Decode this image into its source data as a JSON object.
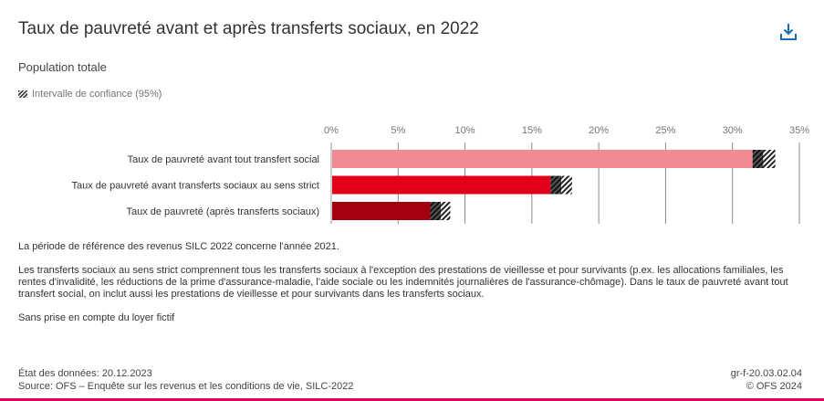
{
  "header": {
    "title": "Taux de pauvreté avant et après transferts sociaux, en 2022",
    "subtitle": "Population totale",
    "download_icon": "download-icon"
  },
  "legend": {
    "icon": "hatch-pattern-icon",
    "label": "Intervalle de confiance (95%)"
  },
  "colors": {
    "accent": "#0F6EB5",
    "bar_1": "#F08A95",
    "bar_2": "#E1001A",
    "bar_3": "#A3000F",
    "bottom_band": "#D8085E"
  },
  "chart_data": {
    "type": "bar",
    "orientation": "horizontal",
    "title": "Taux de pauvreté avant et après transferts sociaux, en 2022",
    "subtitle": "Population totale",
    "categories": [
      "Taux de pauvreté avant tout transfert social",
      "Taux de pauvreté avant transferts sociaux au sens strict",
      "Taux de pauvreté (après transferts sociaux)"
    ],
    "values": [
      32.3,
      17.2,
      8.2
    ],
    "ci_lower": [
      31.5,
      16.4,
      7.4
    ],
    "ci_upper": [
      33.2,
      18.0,
      8.9
    ],
    "colors": [
      "#F08A95",
      "#E1001A",
      "#A3000F"
    ],
    "xlabel": "",
    "ylabel": "",
    "xlim": [
      0,
      35
    ],
    "x_ticks": [
      0,
      5,
      10,
      15,
      20,
      25,
      30,
      35
    ],
    "x_tick_labels": [
      "0%",
      "5%",
      "10%",
      "15%",
      "20%",
      "25%",
      "30%",
      "35%"
    ],
    "axis_position": "top",
    "grid": true,
    "legend": [
      "Intervalle de confiance (95%)"
    ],
    "legend_position": "top-left"
  },
  "notes": [
    "La période de référence des revenus SILC 2022 concerne l'année 2021.",
    "Les transferts sociaux au sens strict comprennent tous les transferts sociaux à l'exception des prestations de vieillesse et pour survivants (p.ex. les allocations familiales, les rentes d'invalidité, les réductions de la prime d'assurance-maladie, l'aide sociale ou les indemnités journalières de l'assurance-chômage). Dans le taux de pauvreté avant tout transfert social, on inclut aussi les prestations de vieillesse et pour survivants dans les transferts sociaux.",
    "Sans prise en compte du loyer fictif"
  ],
  "footer": {
    "data_state": "État des données: 20.12.2023",
    "source": "Source: OFS – Enquête sur les revenus et les conditions de vie, SILC-2022",
    "code": "gr-f-20.03.02.04",
    "copyright": "© OFS 2024"
  }
}
